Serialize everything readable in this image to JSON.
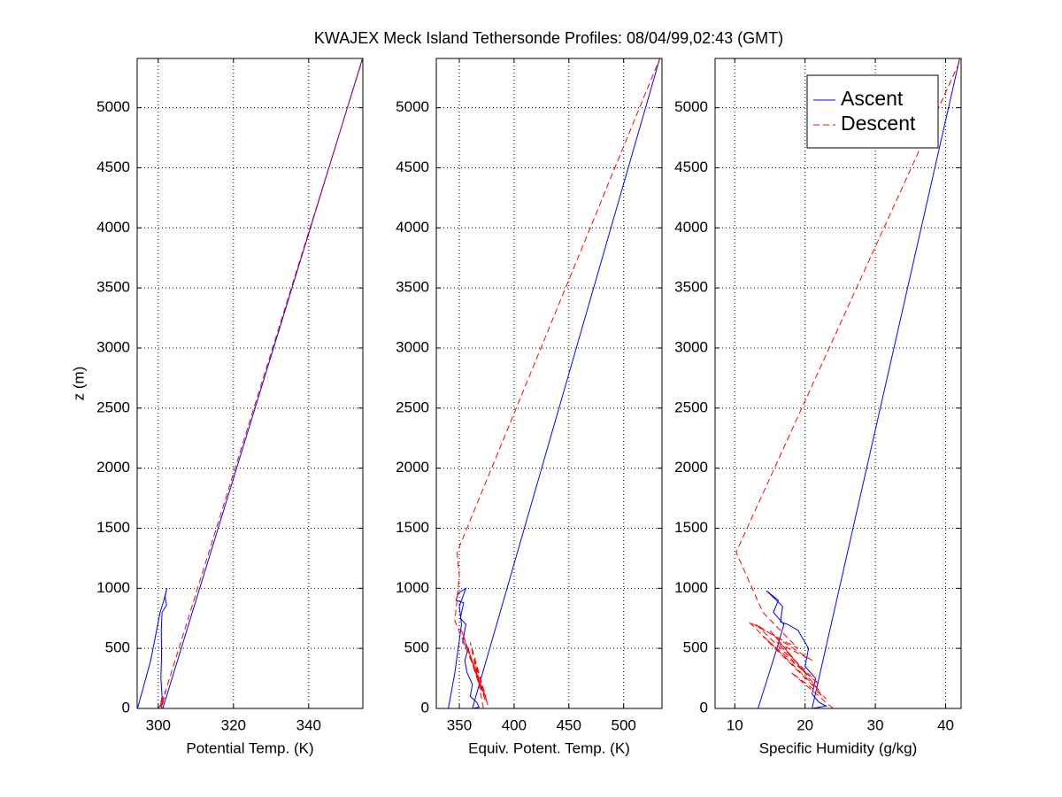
{
  "title": "KWAJEX Meck Island Tethersonde Profiles: 08/04/99,02:43 (GMT)",
  "chart_data": [
    {
      "type": "line",
      "xlabel": "Potential Temp. (K)",
      "ylabel": "z (m)",
      "xlim": [
        294.4,
        354.4
      ],
      "ylim": [
        0,
        5410
      ],
      "xticks": [
        300,
        320,
        340
      ],
      "yticks": [
        0,
        500,
        1000,
        1500,
        2000,
        2500,
        3000,
        3500,
        4000,
        4500,
        5000
      ],
      "grid": true,
      "series": [
        {
          "name": "Ascent",
          "color": "#0000ff",
          "dash": "solid",
          "x": [
            294.5,
            298,
            300.5,
            301.5,
            302.3,
            301.8,
            302.2,
            301,
            300.8,
            300.9,
            300.7,
            301,
            300.6,
            301.2,
            302,
            354.3
          ],
          "values": [
            0,
            400,
            800,
            900,
            1000,
            930,
            860,
            800,
            650,
            450,
            250,
            100,
            20,
            0,
            80,
            5410
          ]
        },
        {
          "name": "Descent",
          "color": "#ff0000",
          "dash": "dashed",
          "x": [
            300,
            301.5,
            300.4,
            302,
            300.5,
            301.8,
            300.8,
            302.5,
            354.4
          ],
          "values": [
            0,
            60,
            20,
            150,
            40,
            90,
            10,
            200,
            5410
          ]
        }
      ]
    },
    {
      "type": "line",
      "xlabel": "Equiv. Potent. Temp. (K)",
      "xlim": [
        329,
        535
      ],
      "ylim": [
        0,
        5410
      ],
      "xticks": [
        350,
        400,
        450,
        500
      ],
      "yticks": [
        0,
        500,
        1000,
        1500,
        2000,
        2500,
        3000,
        3500,
        4000,
        4500,
        5000
      ],
      "grid": true,
      "series": [
        {
          "name": "Ascent",
          "color": "#0000ff",
          "dash": "solid",
          "x": [
            340,
            346,
            352,
            350,
            356,
            349,
            347,
            354,
            351,
            356,
            353,
            358,
            355,
            357,
            362,
            360,
            366,
            368,
            362,
            533
          ],
          "values": [
            0,
            300,
            700,
            850,
            1000,
            960,
            900,
            880,
            750,
            700,
            550,
            500,
            400,
            300,
            200,
            100,
            50,
            10,
            0,
            5410
          ]
        },
        {
          "name": "Descent",
          "color": "#ff0000",
          "dash": "dashed",
          "x": [
            372,
            366,
            374,
            358,
            370,
            364,
            376,
            352,
            368,
            360,
            374,
            346,
            350,
            348,
            533
          ],
          "values": [
            0,
            300,
            60,
            500,
            150,
            400,
            30,
            650,
            200,
            550,
            100,
            730,
            1100,
            1300,
            5410
          ]
        }
      ]
    },
    {
      "type": "line",
      "xlabel": "Specific Humidity (g/kg)",
      "xlim": [
        7.2,
        42.2
      ],
      "ylim": [
        0,
        5410
      ],
      "xticks": [
        10,
        20,
        30,
        40
      ],
      "yticks": [
        0,
        500,
        1000,
        1500,
        2000,
        2500,
        3000,
        3500,
        4000,
        4500,
        5000
      ],
      "grid": true,
      "legend": "upper right",
      "series": [
        {
          "name": "Ascent",
          "color": "#0000ff",
          "dash": "solid",
          "x": [
            13.3,
            16,
            17,
            15.5,
            16.2,
            14.5,
            16.8,
            16.5,
            17.5,
            19,
            20.5,
            20,
            21.5,
            21,
            22,
            23,
            21,
            42
          ],
          "values": [
            0,
            500,
            700,
            800,
            900,
            980,
            850,
            720,
            700,
            650,
            500,
            350,
            250,
            120,
            50,
            20,
            0,
            5410
          ]
        },
        {
          "name": "Descent",
          "color": "#ff0000",
          "dash": "dashed",
          "x": [
            24,
            18,
            23,
            14,
            22,
            16,
            21,
            13,
            20,
            15,
            22,
            12,
            19,
            14,
            10.2,
            42.2
          ],
          "values": [
            0,
            300,
            80,
            600,
            200,
            550,
            400,
            700,
            300,
            650,
            150,
            720,
            500,
            800,
            1300,
            5410
          ]
        }
      ]
    }
  ]
}
